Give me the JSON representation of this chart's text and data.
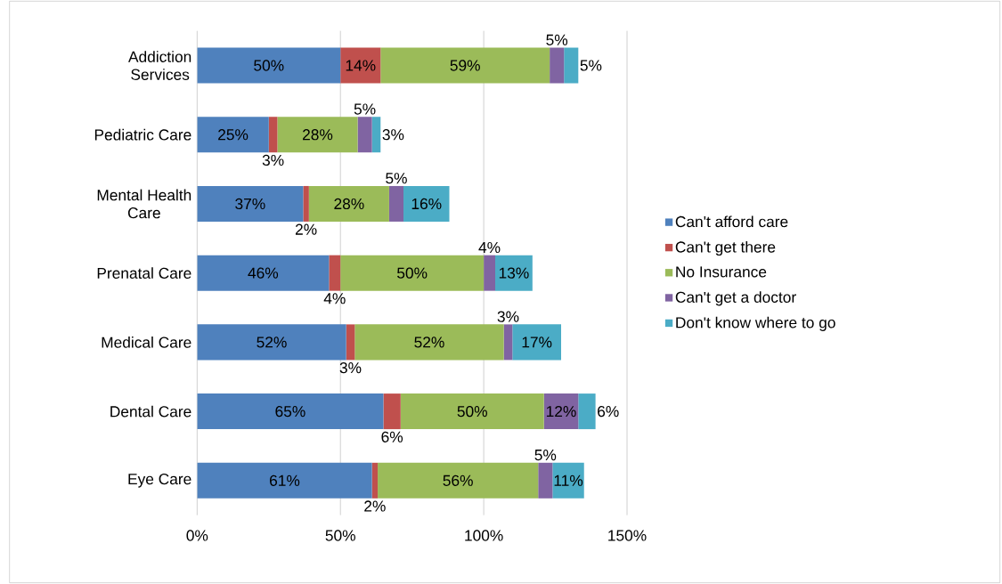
{
  "chart_data": {
    "type": "bar",
    "orientation": "horizontal",
    "stacked": true,
    "categories": [
      "Addiction Services",
      "Pediatric Care",
      "Mental Health Care",
      "Prenatal Care",
      "Medical Care",
      "Dental Care",
      "Eye Care"
    ],
    "series": [
      {
        "name": "Can't afford care",
        "color": "#4f81bd",
        "values": [
          50,
          25,
          37,
          46,
          52,
          65,
          61
        ],
        "value_labels": [
          "50%",
          "25%",
          "37%",
          "46%",
          "52%",
          "65%",
          "61%"
        ]
      },
      {
        "name": "Can't get there",
        "color": "#c0504d",
        "values": [
          14,
          3,
          2,
          4,
          3,
          6,
          2
        ],
        "value_labels": [
          "14%",
          "3%",
          "2%",
          "4%",
          "3%",
          "6%",
          "2%"
        ]
      },
      {
        "name": "No Insurance",
        "color": "#9bbb59",
        "values": [
          59,
          28,
          28,
          50,
          52,
          50,
          56
        ],
        "value_labels": [
          "59%",
          "28%",
          "28%",
          "50%",
          "52%",
          "50%",
          "56%"
        ]
      },
      {
        "name": "Can't get a doctor",
        "color": "#8064a2",
        "values": [
          5,
          5,
          5,
          4,
          3,
          12,
          5
        ],
        "value_labels": [
          "5%",
          "5%",
          "5%",
          "4%",
          "3%",
          "12%",
          "5%"
        ]
      },
      {
        "name": "Don't know where to go",
        "color": "#4bacc6",
        "values": [
          5,
          3,
          16,
          13,
          17,
          6,
          11
        ],
        "value_labels": [
          "5%",
          "3%",
          "16%",
          "13%",
          "17%",
          "6%",
          "11%"
        ]
      }
    ],
    "xlim": [
      0,
      150
    ],
    "xticks": [
      {
        "value": 0,
        "label": "0%"
      },
      {
        "value": 50,
        "label": "50%"
      },
      {
        "value": 100,
        "label": "100%"
      },
      {
        "value": 150,
        "label": "150%"
      }
    ],
    "grid": "x",
    "legend": "right"
  }
}
